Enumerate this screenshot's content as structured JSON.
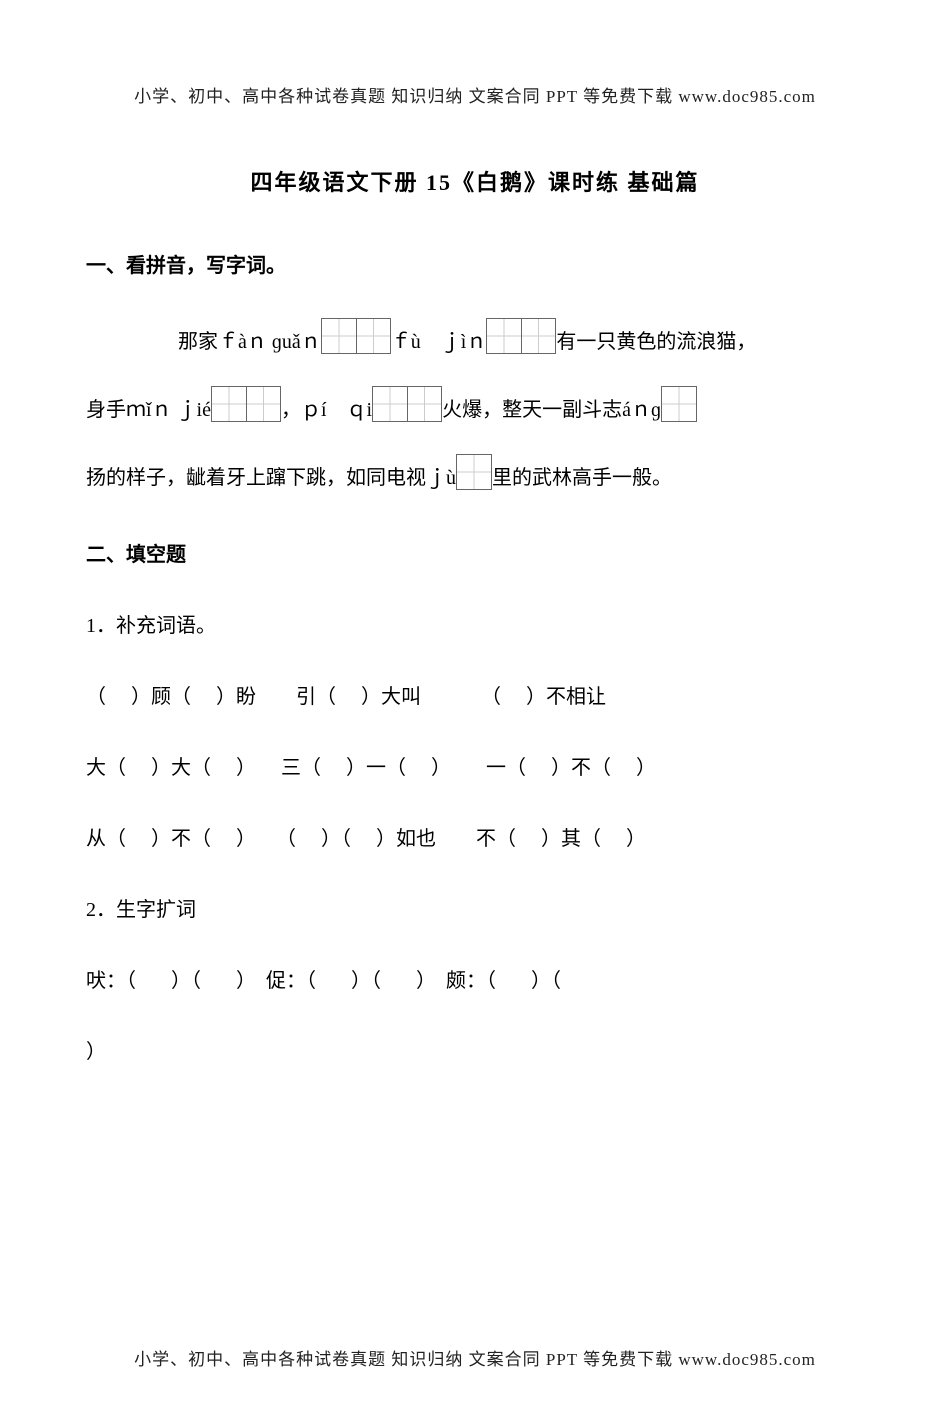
{
  "colors": {
    "text": "#000000",
    "background": "#ffffff",
    "grid_border": "#666666",
    "grid_inner": "#cccccc"
  },
  "typography": {
    "body_fontsize": 20,
    "title_fontsize": 22,
    "header_fontsize": 17,
    "font_family": "SimSun/STSong"
  },
  "header_text": "小学、初中、高中各种试卷真题 知识归纳 文案合同 PPT 等免费下载     www.doc985.com",
  "footer_text": "小学、初中、高中各种试卷真题 知识归纳 文案合同 PPT 等免费下载     www.doc985.com",
  "title": "四年级语文下册 15《白鹅》课时练 基础篇",
  "section1": {
    "heading": "一、看拼音，写字词。",
    "line1": {
      "t1": "那家ｆàｎ ɡuǎｎ",
      "cells1": 2,
      "t2": "ｆù　ｊìｎ",
      "cells2": 2,
      "t3": "有一只黄色的流浪猫，"
    },
    "line2": {
      "t1": "身手ｍǐｎ ｊié",
      "cells1": 2,
      "t2": "，ｐí　ｑi",
      "cells2": 2,
      "t3": "火爆，整天一副斗志áｎɡ",
      "cells3": 1
    },
    "line3": {
      "t1": "扬的样子，龇着牙上蹿下跳，如同电视ｊù",
      "cells1": 1,
      "t2": "里的武林高手一般。"
    }
  },
  "section2": {
    "heading": "二、填空题",
    "q1": {
      "label": "1．补充词语。",
      "rows": [
        "（     ）顾（     ）盼        引（     ）大叫            （     ）不相让",
        "大（     ）大（     ）     三（     ）一（     ）       一（     ）不（     ）",
        "从（     ）不（     ）    （     ）（     ）如也        不（     ）其（     ）"
      ]
    },
    "q2": {
      "label": "2．生字扩词",
      "rows": [
        "吠：（       ）（       ）  促：（       ）（       ）  颇：（       ）（       ",
        "）"
      ]
    }
  }
}
